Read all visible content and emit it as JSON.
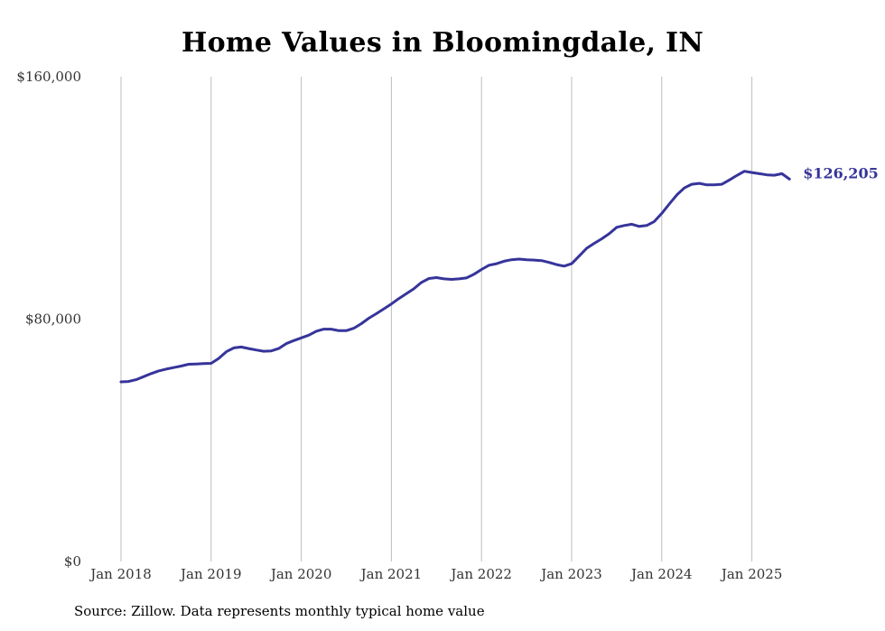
{
  "chart_data": {
    "type": "line",
    "title": "Home Values in Bloomingdale, IN",
    "xlabel": "",
    "ylabel": "",
    "ylim": [
      0,
      160000
    ],
    "y_ticks": [
      {
        "value": 0,
        "label": "$0"
      },
      {
        "value": 80000,
        "label": "$80,000"
      },
      {
        "value": 160000,
        "label": "$160,000"
      }
    ],
    "x_ticks": [
      {
        "value": 2018,
        "label": "Jan 2018"
      },
      {
        "value": 2019,
        "label": "Jan 2019"
      },
      {
        "value": 2020,
        "label": "Jan 2020"
      },
      {
        "value": 2021,
        "label": "Jan 2021"
      },
      {
        "value": 2022,
        "label": "Jan 2022"
      },
      {
        "value": 2023,
        "label": "Jan 2023"
      },
      {
        "value": 2024,
        "label": "Jan 2024"
      },
      {
        "value": 2025,
        "label": "Jan 2025"
      }
    ],
    "grid": "vertical",
    "color": "#36349a",
    "end_label": "$126,205",
    "series": [
      {
        "x": [
          2018.0,
          2018.083,
          2018.167,
          2018.25,
          2018.333,
          2018.417,
          2018.5,
          2018.583,
          2018.667,
          2018.75,
          2018.833,
          2018.917,
          2019.0,
          2019.083,
          2019.167,
          2019.25,
          2019.333,
          2019.417,
          2019.5,
          2019.583,
          2019.667,
          2019.75,
          2019.833,
          2019.917,
          2020.0,
          2020.083,
          2020.167,
          2020.25,
          2020.333,
          2020.417,
          2020.5,
          2020.583,
          2020.667,
          2020.75,
          2020.833,
          2020.917,
          2021.0,
          2021.083,
          2021.167,
          2021.25,
          2021.333,
          2021.417,
          2021.5,
          2021.583,
          2021.667,
          2021.75,
          2021.833,
          2021.917,
          2022.0,
          2022.083,
          2022.167,
          2022.25,
          2022.333,
          2022.417,
          2022.5,
          2022.583,
          2022.667,
          2022.75,
          2022.833,
          2022.917,
          2023.0,
          2023.083,
          2023.167,
          2023.25,
          2023.333,
          2023.417,
          2023.5,
          2023.583,
          2023.667,
          2023.75,
          2023.833,
          2023.917,
          2024.0,
          2024.083,
          2024.167,
          2024.25,
          2024.333,
          2024.417,
          2024.5,
          2024.583,
          2024.667,
          2024.75,
          2024.833,
          2024.917,
          2025.0,
          2025.083,
          2025.167,
          2025.25,
          2025.333,
          2025.417
        ],
        "y": [
          59300,
          59400,
          60000,
          61000,
          62000,
          62900,
          63500,
          64000,
          64500,
          65100,
          65200,
          65300,
          65400,
          67000,
          69200,
          70500,
          70800,
          70300,
          69800,
          69400,
          69500,
          70300,
          71900,
          72900,
          73800,
          74700,
          76000,
          76700,
          76700,
          76200,
          76200,
          77000,
          78500,
          80300,
          81800,
          83400,
          85000,
          86800,
          88400,
          90000,
          92100,
          93400,
          93700,
          93300,
          93100,
          93300,
          93600,
          94800,
          96400,
          97800,
          98300,
          99100,
          99600,
          99800,
          99600,
          99500,
          99300,
          98700,
          98000,
          97500,
          98300,
          100800,
          103400,
          105000,
          106500,
          108200,
          110300,
          110900,
          111300,
          110600,
          110900,
          112200,
          114900,
          118000,
          121000,
          123300,
          124500,
          124800,
          124300,
          124300,
          124500,
          125900,
          127400,
          128800,
          128400,
          128000,
          127600,
          127500,
          128000,
          126205
        ]
      }
    ]
  },
  "source_text": "Source: Zillow. Data represents monthly typical home value"
}
